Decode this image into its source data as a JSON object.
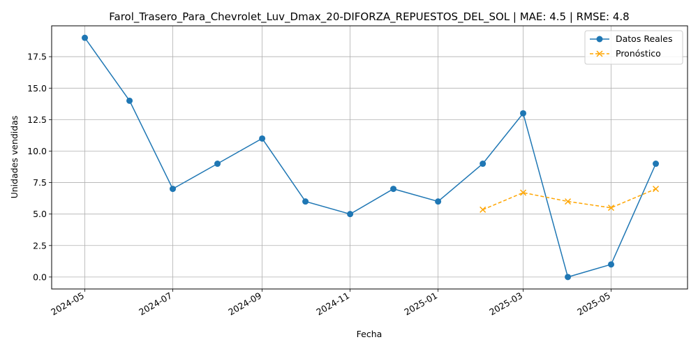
{
  "chart_data": {
    "type": "line",
    "title": "Farol_Trasero_Para_Chevrolet_Luv_Dmax_20-DIFORZA_REPUESTOS_DEL_SOL | MAE: 4.5 | RMSE: 4.8",
    "xlabel": "Fecha",
    "ylabel": "Unidades vendidas",
    "x_ticks": [
      "2024-05",
      "2024-07",
      "2024-09",
      "2024-11",
      "2025-01",
      "2025-03",
      "2025-05"
    ],
    "y_ticks": [
      "0.0",
      "2.5",
      "5.0",
      "7.5",
      "10.0",
      "12.5",
      "15.0",
      "17.5"
    ],
    "ylim": [
      -0.95,
      19.95
    ],
    "xlim": [
      "2024-04-08",
      "2025-06-23"
    ],
    "grid": true,
    "legend_position": "top-right",
    "series": [
      {
        "name": "Datos Reales",
        "color": "#1f77b4",
        "style": "solid",
        "marker": "circle",
        "x": [
          "2024-05-01",
          "2024-06-01",
          "2024-07-01",
          "2024-08-01",
          "2024-09-01",
          "2024-10-01",
          "2024-11-01",
          "2024-12-01",
          "2025-01-01",
          "2025-02-01",
          "2025-03-01",
          "2025-04-01",
          "2025-05-01",
          "2025-06-01"
        ],
        "y": [
          19,
          14,
          7,
          9,
          11,
          6,
          5,
          7,
          6,
          9,
          13,
          0,
          1,
          9
        ]
      },
      {
        "name": "Pronóstico",
        "color": "#ffa500",
        "style": "dashed",
        "marker": "x",
        "x": [
          "2025-02-01",
          "2025-03-01",
          "2025-04-01",
          "2025-05-01",
          "2025-06-01"
        ],
        "y": [
          5.35,
          6.7,
          6.0,
          5.5,
          7.0
        ]
      }
    ]
  }
}
